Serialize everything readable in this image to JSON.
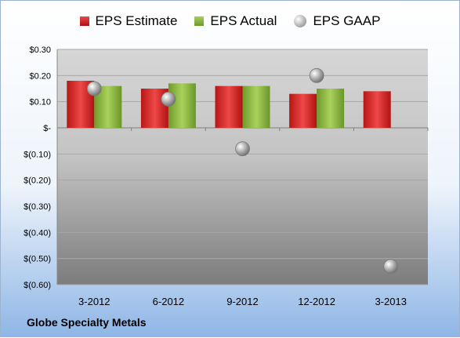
{
  "company": "Globe Specialty Metals",
  "legend": {
    "estimate": "EPS Estimate",
    "actual": "EPS Actual",
    "gaap": "EPS GAAP"
  },
  "chart_data": {
    "type": "bar",
    "categories": [
      "3-2012",
      "6-2012",
      "9-2012",
      "12-2012",
      "3-2013"
    ],
    "series": [
      {
        "name": "EPS Estimate",
        "kind": "bar",
        "color": "#cc2222",
        "values": [
          0.18,
          0.15,
          0.16,
          0.13,
          0.14
        ]
      },
      {
        "name": "EPS Actual",
        "kind": "bar",
        "color": "#8db545",
        "values": [
          0.16,
          0.17,
          0.16,
          0.15,
          null
        ]
      },
      {
        "name": "EPS GAAP",
        "kind": "scatter",
        "color": "#a9a9a9",
        "values": [
          0.15,
          0.11,
          -0.08,
          0.2,
          -0.53
        ]
      }
    ],
    "y_ticks": [
      0.3,
      0.2,
      0.1,
      0,
      -0.1,
      -0.2,
      -0.3,
      -0.4,
      -0.5,
      -0.6
    ],
    "y_tick_labels": [
      "$0.30",
      "$0.20",
      "$0.10",
      "$-",
      "$(0.10)",
      "$(0.20)",
      "$(0.30)",
      "$(0.40)",
      "$(0.50)",
      "$(0.60)"
    ],
    "ylim": [
      -0.6,
      0.3
    ],
    "grid": true,
    "legend_position": "top"
  }
}
